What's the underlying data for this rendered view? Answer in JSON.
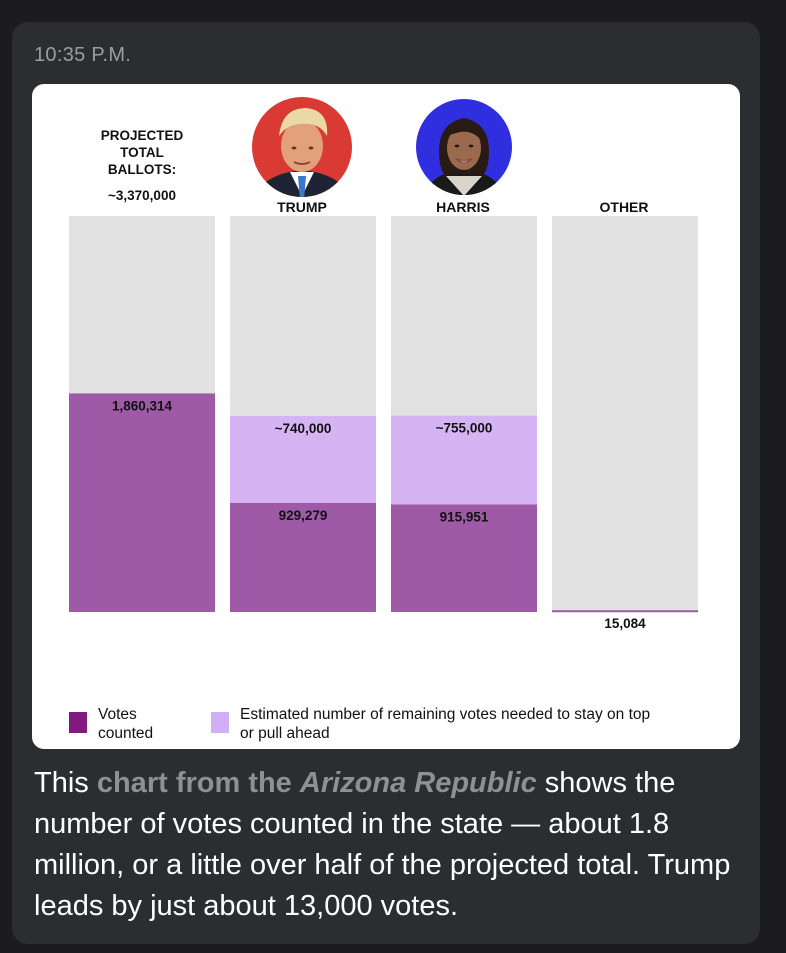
{
  "message": {
    "timestamp": "10:35 P.M.",
    "caption": {
      "pre": "This ",
      "highlight": "chart from the ",
      "highlight_italic": "Arizona Republic",
      "post": " shows the number of votes counted in the state — about 1.8 million, or a little over half of the projected total. Trump leads by just about 13,000 votes."
    }
  },
  "colors": {
    "counted": "#9e5aa6",
    "needed": "#d6b4f4",
    "remaining": "#e2e2e2",
    "legend_counted": "#82197f",
    "legend_needed": "#d3aef8",
    "trump_bg": "#d93a33",
    "harris_bg": "#2f2fe0"
  },
  "chart_data": {
    "type": "bar",
    "stacked": true,
    "header": {
      "line1": "PROJECTED",
      "line2": "TOTAL",
      "line3": "BALLOTS:",
      "value_label": "~3,370,000"
    },
    "projected_total": 3370000,
    "categories": [
      "",
      "TRUMP",
      "HARRIS",
      "OTHER"
    ],
    "candidate_photos": [
      "",
      "trump-photo",
      "harris-photo",
      ""
    ],
    "series": [
      {
        "name": "Votes counted",
        "values": [
          1860314,
          929279,
          915951,
          15084
        ],
        "labels": [
          "1,860,314",
          "929,279",
          "915,951",
          "15,084"
        ]
      },
      {
        "name": "Estimated number of remaining votes needed to stay on top or pull ahead",
        "values": [
          0,
          740000,
          755000,
          0
        ],
        "labels": [
          "",
          "~740,000",
          "~755,000",
          ""
        ]
      }
    ],
    "ylim": [
      0,
      3370000
    ],
    "grid": false,
    "legend": {
      "position": "bottom",
      "counted_label_line1": "Votes",
      "counted_label_line2": "counted",
      "needed_label_line1": "Estimated number of remaining votes needed to stay on top",
      "needed_label_line2": "or pull ahead"
    }
  }
}
